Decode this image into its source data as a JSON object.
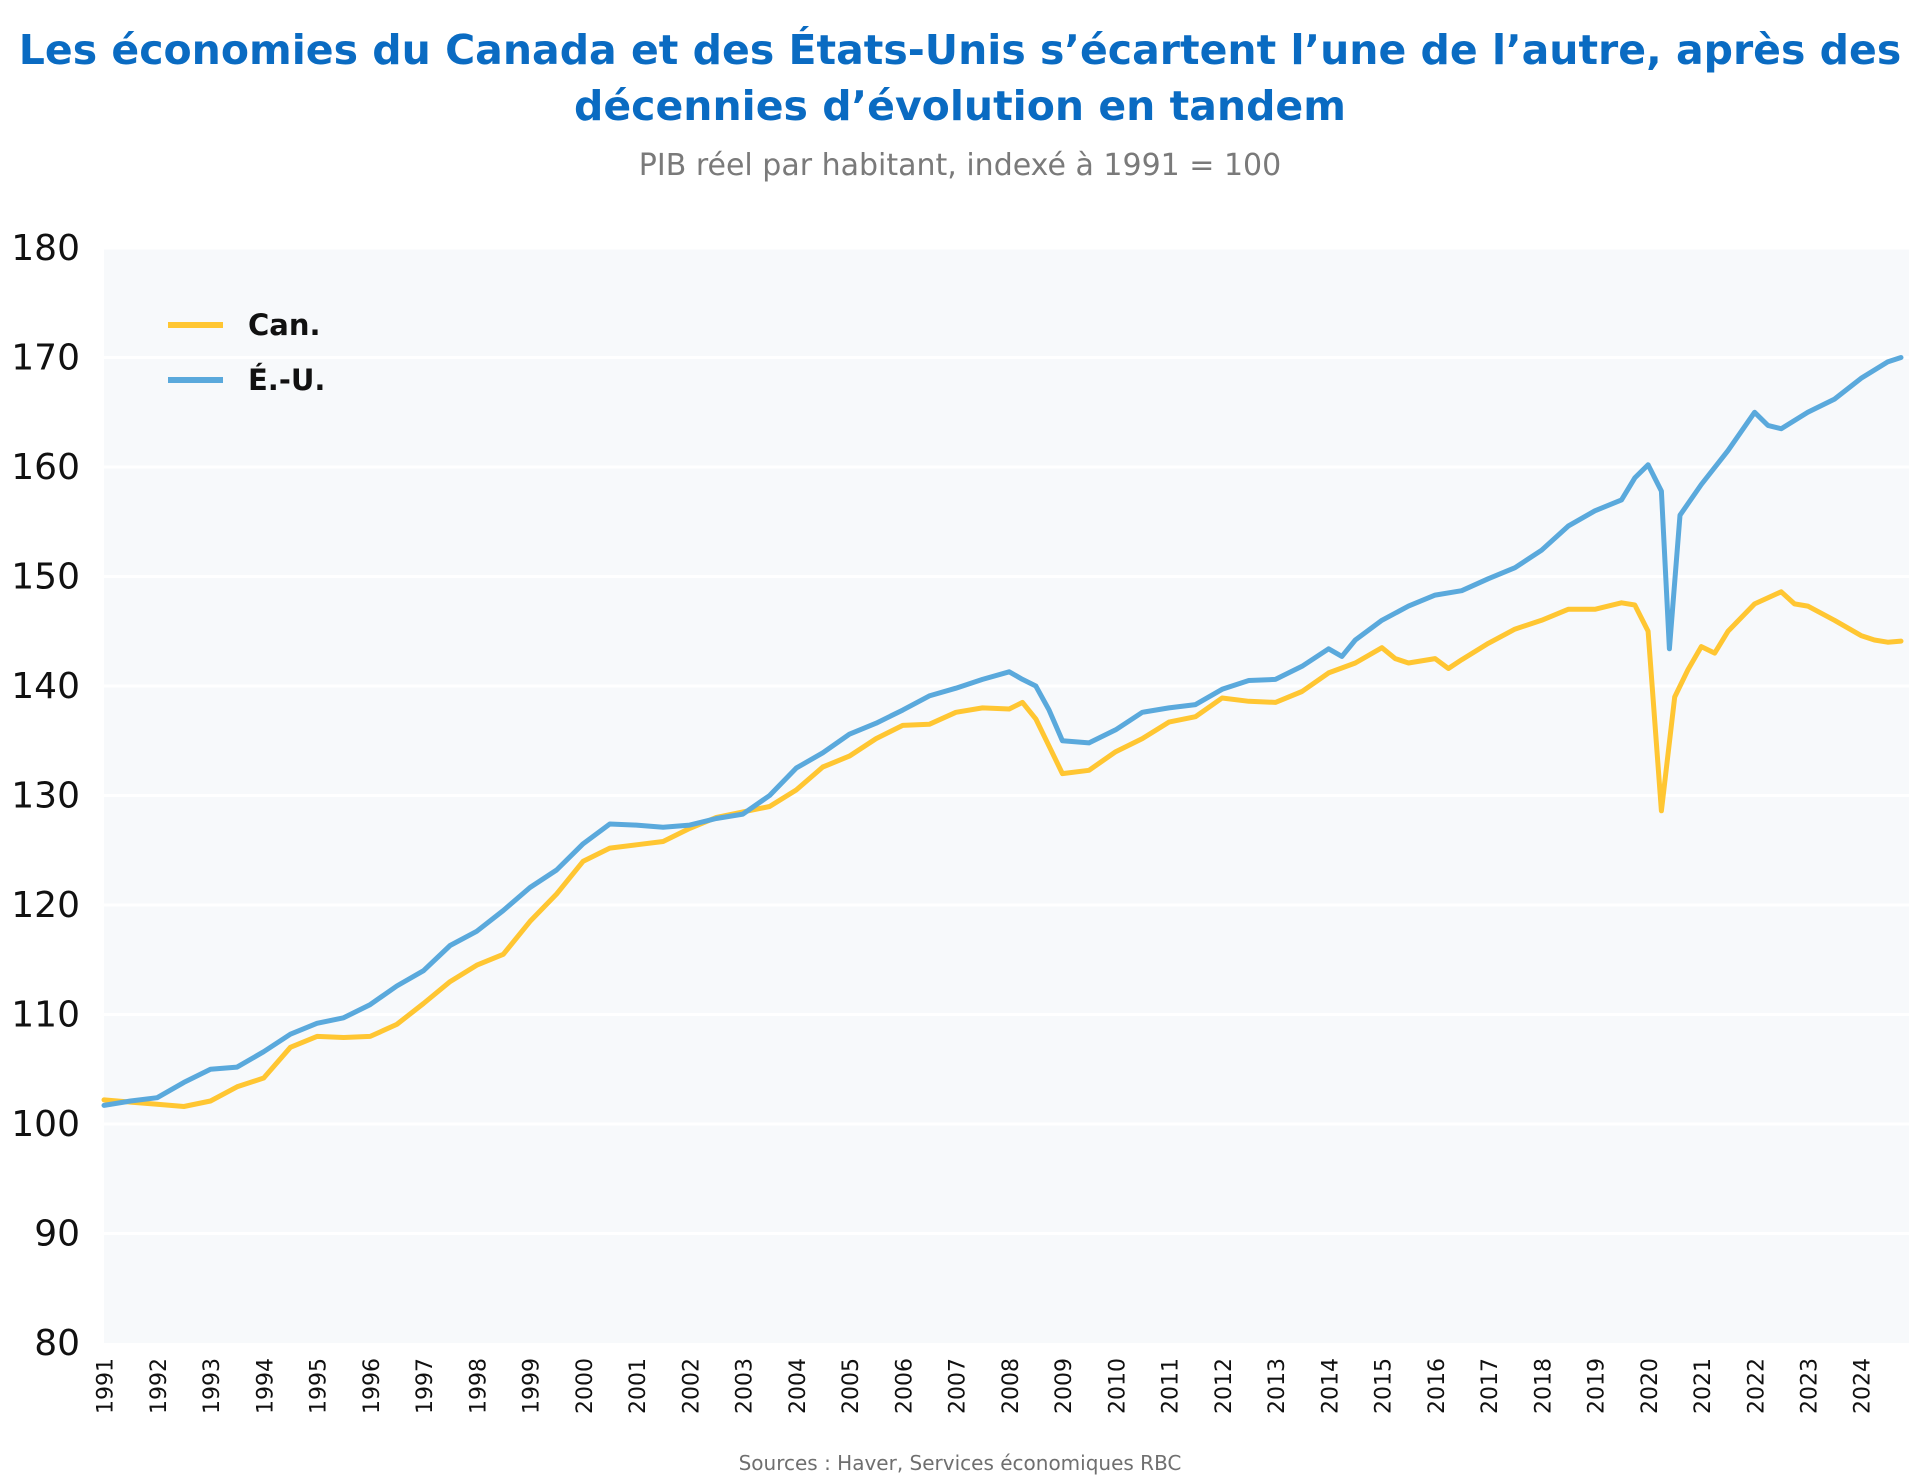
{
  "chart_data": {
    "type": "line",
    "title": "Les économies du Canada et des États-Unis s’écartent l’une de l’autre, après des décennies d’évolution en tandem",
    "subtitle": "PIB réel par habitant, indexé à 1991 = 100",
    "source": "Sources : Haver, Services économiques RBC",
    "ylim": [
      80,
      180
    ],
    "yticks": [
      80,
      90,
      100,
      110,
      120,
      130,
      140,
      150,
      160,
      170,
      180
    ],
    "xlim": [
      1991,
      2024.9
    ],
    "xticks": [
      "1991",
      "1992",
      "1993",
      "1994",
      "1995",
      "1996",
      "1997",
      "1998",
      "1999",
      "2000",
      "2001",
      "2002",
      "2003",
      "2004",
      "2005",
      "2006",
      "2007",
      "2008",
      "2009",
      "2010",
      "2011",
      "2012",
      "2013",
      "2014",
      "2015",
      "2016",
      "2017",
      "2018",
      "2019",
      "2020",
      "2021",
      "2022",
      "2023",
      "2024"
    ],
    "grid": true,
    "legend": "top-left",
    "colors": {
      "canada": "#ffc632",
      "usa": "#5aa9dc",
      "plot_bg": "#f7f9fb",
      "title": "#0a6bc2"
    },
    "series": [
      {
        "name": "Can.",
        "points": [
          [
            1991.0,
            102.2
          ],
          [
            1991.5,
            102.0
          ],
          [
            1992.0,
            101.8
          ],
          [
            1992.5,
            101.6
          ],
          [
            1993.0,
            102.1
          ],
          [
            1993.5,
            103.4
          ],
          [
            1994.0,
            104.2
          ],
          [
            1994.5,
            107.0
          ],
          [
            1995.0,
            108.0
          ],
          [
            1995.5,
            107.9
          ],
          [
            1996.0,
            108.0
          ],
          [
            1996.5,
            109.1
          ],
          [
            1997.0,
            111.0
          ],
          [
            1997.5,
            113.0
          ],
          [
            1998.0,
            114.5
          ],
          [
            1998.5,
            115.5
          ],
          [
            1999.0,
            118.5
          ],
          [
            1999.5,
            121.0
          ],
          [
            2000.0,
            124.0
          ],
          [
            2000.5,
            125.2
          ],
          [
            2001.0,
            125.5
          ],
          [
            2001.5,
            125.8
          ],
          [
            2002.0,
            127.0
          ],
          [
            2002.5,
            128.0
          ],
          [
            2003.0,
            128.5
          ],
          [
            2003.5,
            129.0
          ],
          [
            2004.0,
            130.5
          ],
          [
            2004.5,
            132.6
          ],
          [
            2005.0,
            133.6
          ],
          [
            2005.5,
            135.2
          ],
          [
            2006.0,
            136.4
          ],
          [
            2006.5,
            136.5
          ],
          [
            2007.0,
            137.6
          ],
          [
            2007.5,
            138.0
          ],
          [
            2008.0,
            137.9
          ],
          [
            2008.25,
            138.5
          ],
          [
            2008.5,
            137.0
          ],
          [
            2008.75,
            134.5
          ],
          [
            2009.0,
            132.0
          ],
          [
            2009.5,
            132.3
          ],
          [
            2010.0,
            134.0
          ],
          [
            2010.5,
            135.2
          ],
          [
            2011.0,
            136.7
          ],
          [
            2011.5,
            137.2
          ],
          [
            2012.0,
            138.9
          ],
          [
            2012.5,
            138.6
          ],
          [
            2013.0,
            138.5
          ],
          [
            2013.5,
            139.5
          ],
          [
            2014.0,
            141.2
          ],
          [
            2014.5,
            142.1
          ],
          [
            2015.0,
            143.5
          ],
          [
            2015.25,
            142.5
          ],
          [
            2015.5,
            142.1
          ],
          [
            2016.0,
            142.5
          ],
          [
            2016.25,
            141.6
          ],
          [
            2016.5,
            142.4
          ],
          [
            2017.0,
            143.9
          ],
          [
            2017.5,
            145.2
          ],
          [
            2018.0,
            146.0
          ],
          [
            2018.5,
            147.0
          ],
          [
            2019.0,
            147.0
          ],
          [
            2019.5,
            147.6
          ],
          [
            2019.75,
            147.4
          ],
          [
            2020.0,
            145.0
          ],
          [
            2020.25,
            128.6
          ],
          [
            2020.5,
            139.0
          ],
          [
            2020.75,
            141.5
          ],
          [
            2021.0,
            143.6
          ],
          [
            2021.25,
            143.0
          ],
          [
            2021.5,
            145.0
          ],
          [
            2022.0,
            147.5
          ],
          [
            2022.5,
            148.6
          ],
          [
            2022.75,
            147.5
          ],
          [
            2023.0,
            147.3
          ],
          [
            2023.5,
            146.0
          ],
          [
            2024.0,
            144.6
          ],
          [
            2024.25,
            144.2
          ],
          [
            2024.5,
            144.0
          ],
          [
            2024.75,
            144.1
          ]
        ]
      },
      {
        "name": "É.-U.",
        "points": [
          [
            1991.0,
            101.7
          ],
          [
            1991.5,
            102.1
          ],
          [
            1992.0,
            102.4
          ],
          [
            1992.5,
            103.8
          ],
          [
            1993.0,
            105.0
          ],
          [
            1993.5,
            105.2
          ],
          [
            1994.0,
            106.6
          ],
          [
            1994.5,
            108.2
          ],
          [
            1995.0,
            109.2
          ],
          [
            1995.5,
            109.7
          ],
          [
            1996.0,
            110.9
          ],
          [
            1996.5,
            112.6
          ],
          [
            1997.0,
            114.0
          ],
          [
            1997.5,
            116.3
          ],
          [
            1998.0,
            117.6
          ],
          [
            1998.5,
            119.5
          ],
          [
            1999.0,
            121.6
          ],
          [
            1999.5,
            123.2
          ],
          [
            2000.0,
            125.6
          ],
          [
            2000.5,
            127.4
          ],
          [
            2001.0,
            127.3
          ],
          [
            2001.5,
            127.1
          ],
          [
            2002.0,
            127.3
          ],
          [
            2002.5,
            127.9
          ],
          [
            2003.0,
            128.3
          ],
          [
            2003.5,
            130.0
          ],
          [
            2004.0,
            132.5
          ],
          [
            2004.5,
            133.9
          ],
          [
            2005.0,
            135.6
          ],
          [
            2005.5,
            136.6
          ],
          [
            2006.0,
            137.8
          ],
          [
            2006.5,
            139.1
          ],
          [
            2007.0,
            139.8
          ],
          [
            2007.5,
            140.6
          ],
          [
            2008.0,
            141.3
          ],
          [
            2008.25,
            140.6
          ],
          [
            2008.5,
            140.0
          ],
          [
            2008.75,
            137.8
          ],
          [
            2009.0,
            135.0
          ],
          [
            2009.5,
            134.8
          ],
          [
            2010.0,
            136.0
          ],
          [
            2010.5,
            137.6
          ],
          [
            2011.0,
            138.0
          ],
          [
            2011.5,
            138.3
          ],
          [
            2012.0,
            139.7
          ],
          [
            2012.5,
            140.5
          ],
          [
            2013.0,
            140.6
          ],
          [
            2013.5,
            141.8
          ],
          [
            2014.0,
            143.4
          ],
          [
            2014.25,
            142.7
          ],
          [
            2014.5,
            144.2
          ],
          [
            2015.0,
            146.0
          ],
          [
            2015.5,
            147.3
          ],
          [
            2016.0,
            148.3
          ],
          [
            2016.5,
            148.7
          ],
          [
            2017.0,
            149.8
          ],
          [
            2017.5,
            150.8
          ],
          [
            2018.0,
            152.4
          ],
          [
            2018.5,
            154.6
          ],
          [
            2019.0,
            156.0
          ],
          [
            2019.5,
            157.0
          ],
          [
            2019.75,
            159.0
          ],
          [
            2020.0,
            160.2
          ],
          [
            2020.25,
            157.8
          ],
          [
            2020.4,
            143.4
          ],
          [
            2020.6,
            155.6
          ],
          [
            2021.0,
            158.4
          ],
          [
            2021.5,
            161.5
          ],
          [
            2022.0,
            165.0
          ],
          [
            2022.25,
            163.8
          ],
          [
            2022.5,
            163.5
          ],
          [
            2023.0,
            165.0
          ],
          [
            2023.5,
            166.2
          ],
          [
            2024.0,
            168.1
          ],
          [
            2024.5,
            169.6
          ],
          [
            2024.75,
            170.0
          ]
        ]
      }
    ]
  }
}
